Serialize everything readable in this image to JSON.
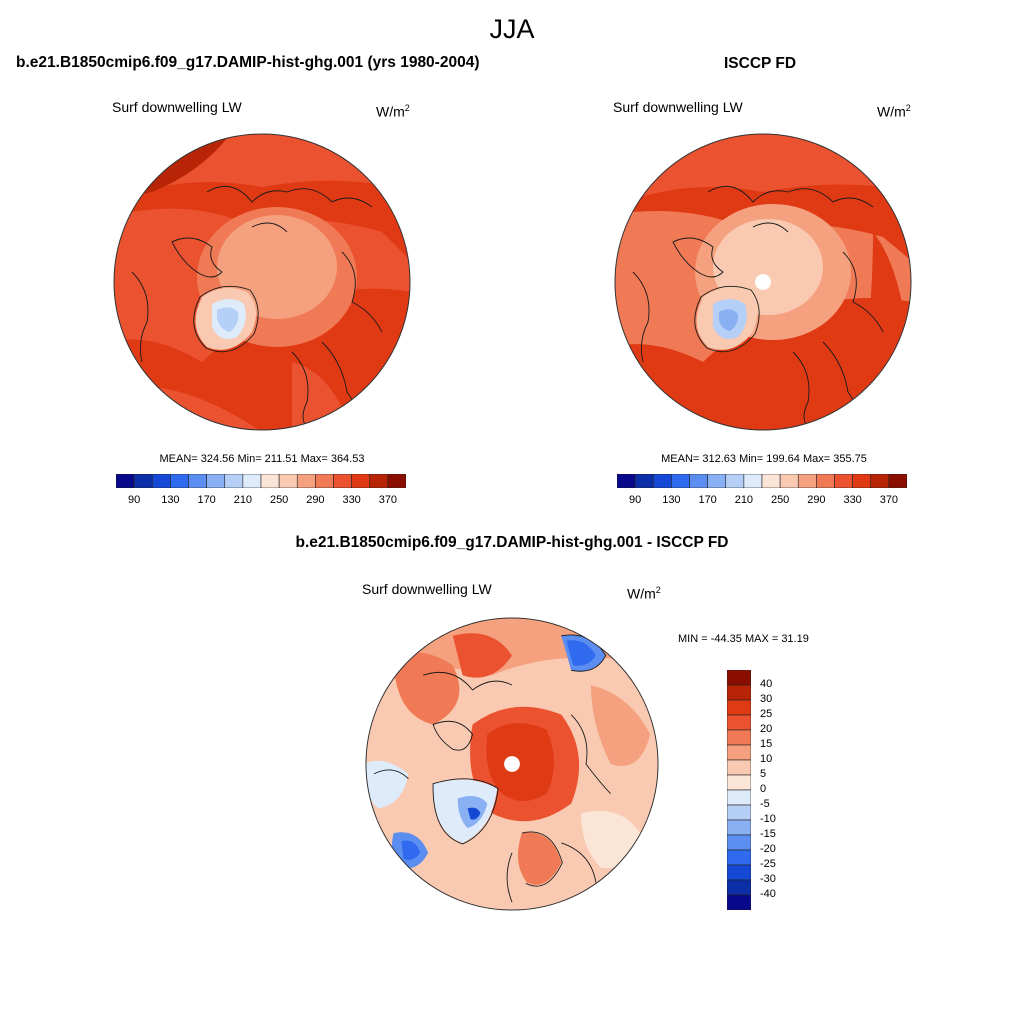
{
  "figure": {
    "season": "JJA",
    "colors": {
      "continent_line": "#1a1a1a",
      "disk_edge": "#333333"
    }
  },
  "panels": [
    {
      "id": "model",
      "title": "b.e21.B1850cmip6.f09_g17.DAMIP-hist-ghg.001 (yrs 1980-2004)",
      "variable": "Surf downwelling LW",
      "units_base": "W/m",
      "units_exp": "2",
      "stats": {
        "mean": "324.56",
        "min": "211.51",
        "max": "364.53"
      },
      "stats_text": "MEAN= 324.56  Min= 211.51  Max= 364.53"
    },
    {
      "id": "obs",
      "title": "ISCCP FD",
      "variable": "Surf downwelling LW",
      "units_base": "W/m",
      "units_exp": "2",
      "stats": {
        "mean": "312.63",
        "min": "199.64",
        "max": "355.75"
      },
      "stats_text": "MEAN= 312.63  Min= 199.64  Max= 355.75"
    },
    {
      "id": "diff",
      "title": "b.e21.B1850cmip6.f09_g17.DAMIP-hist-ghg.001 - ISCCP FD",
      "variable": "Surf downwelling LW",
      "units_base": "W/m",
      "units_exp": "2",
      "stats_text": "MIN = -44.35 MAX =  31.19"
    }
  ],
  "colorbar_abs": {
    "labels": [
      "90",
      "130",
      "170",
      "210",
      "250",
      "290",
      "330",
      "370"
    ],
    "levels": [
      70,
      90,
      110,
      130,
      150,
      170,
      190,
      210,
      230,
      250,
      270,
      290,
      310,
      330,
      350,
      370
    ],
    "colors": [
      "#08088a",
      "#0c2fa8",
      "#1648d6",
      "#2f6aef",
      "#5b8ef0",
      "#89b0f2",
      "#b6cff6",
      "#ddebfa",
      "#fbe5d6",
      "#f9c9b1",
      "#f5a17f",
      "#f07a55",
      "#eb5230",
      "#e03a15",
      "#b82506",
      "#8a0e00"
    ]
  },
  "colorbar_diff": {
    "labels": [
      "40",
      "30",
      "25",
      "20",
      "15",
      "10",
      "5",
      "0",
      "-5",
      "-10",
      "-15",
      "-20",
      "-25",
      "-30",
      "-40"
    ],
    "colors": [
      "#8a0e00",
      "#b82506",
      "#e03a15",
      "#eb5230",
      "#f07a55",
      "#f5a17f",
      "#f9c9b1",
      "#fbe5d6",
      "#ddebfa",
      "#b6cff6",
      "#89b0f2",
      "#5b8ef0",
      "#2f6aef",
      "#1648d6",
      "#0c2fa8",
      "#08088a"
    ]
  }
}
